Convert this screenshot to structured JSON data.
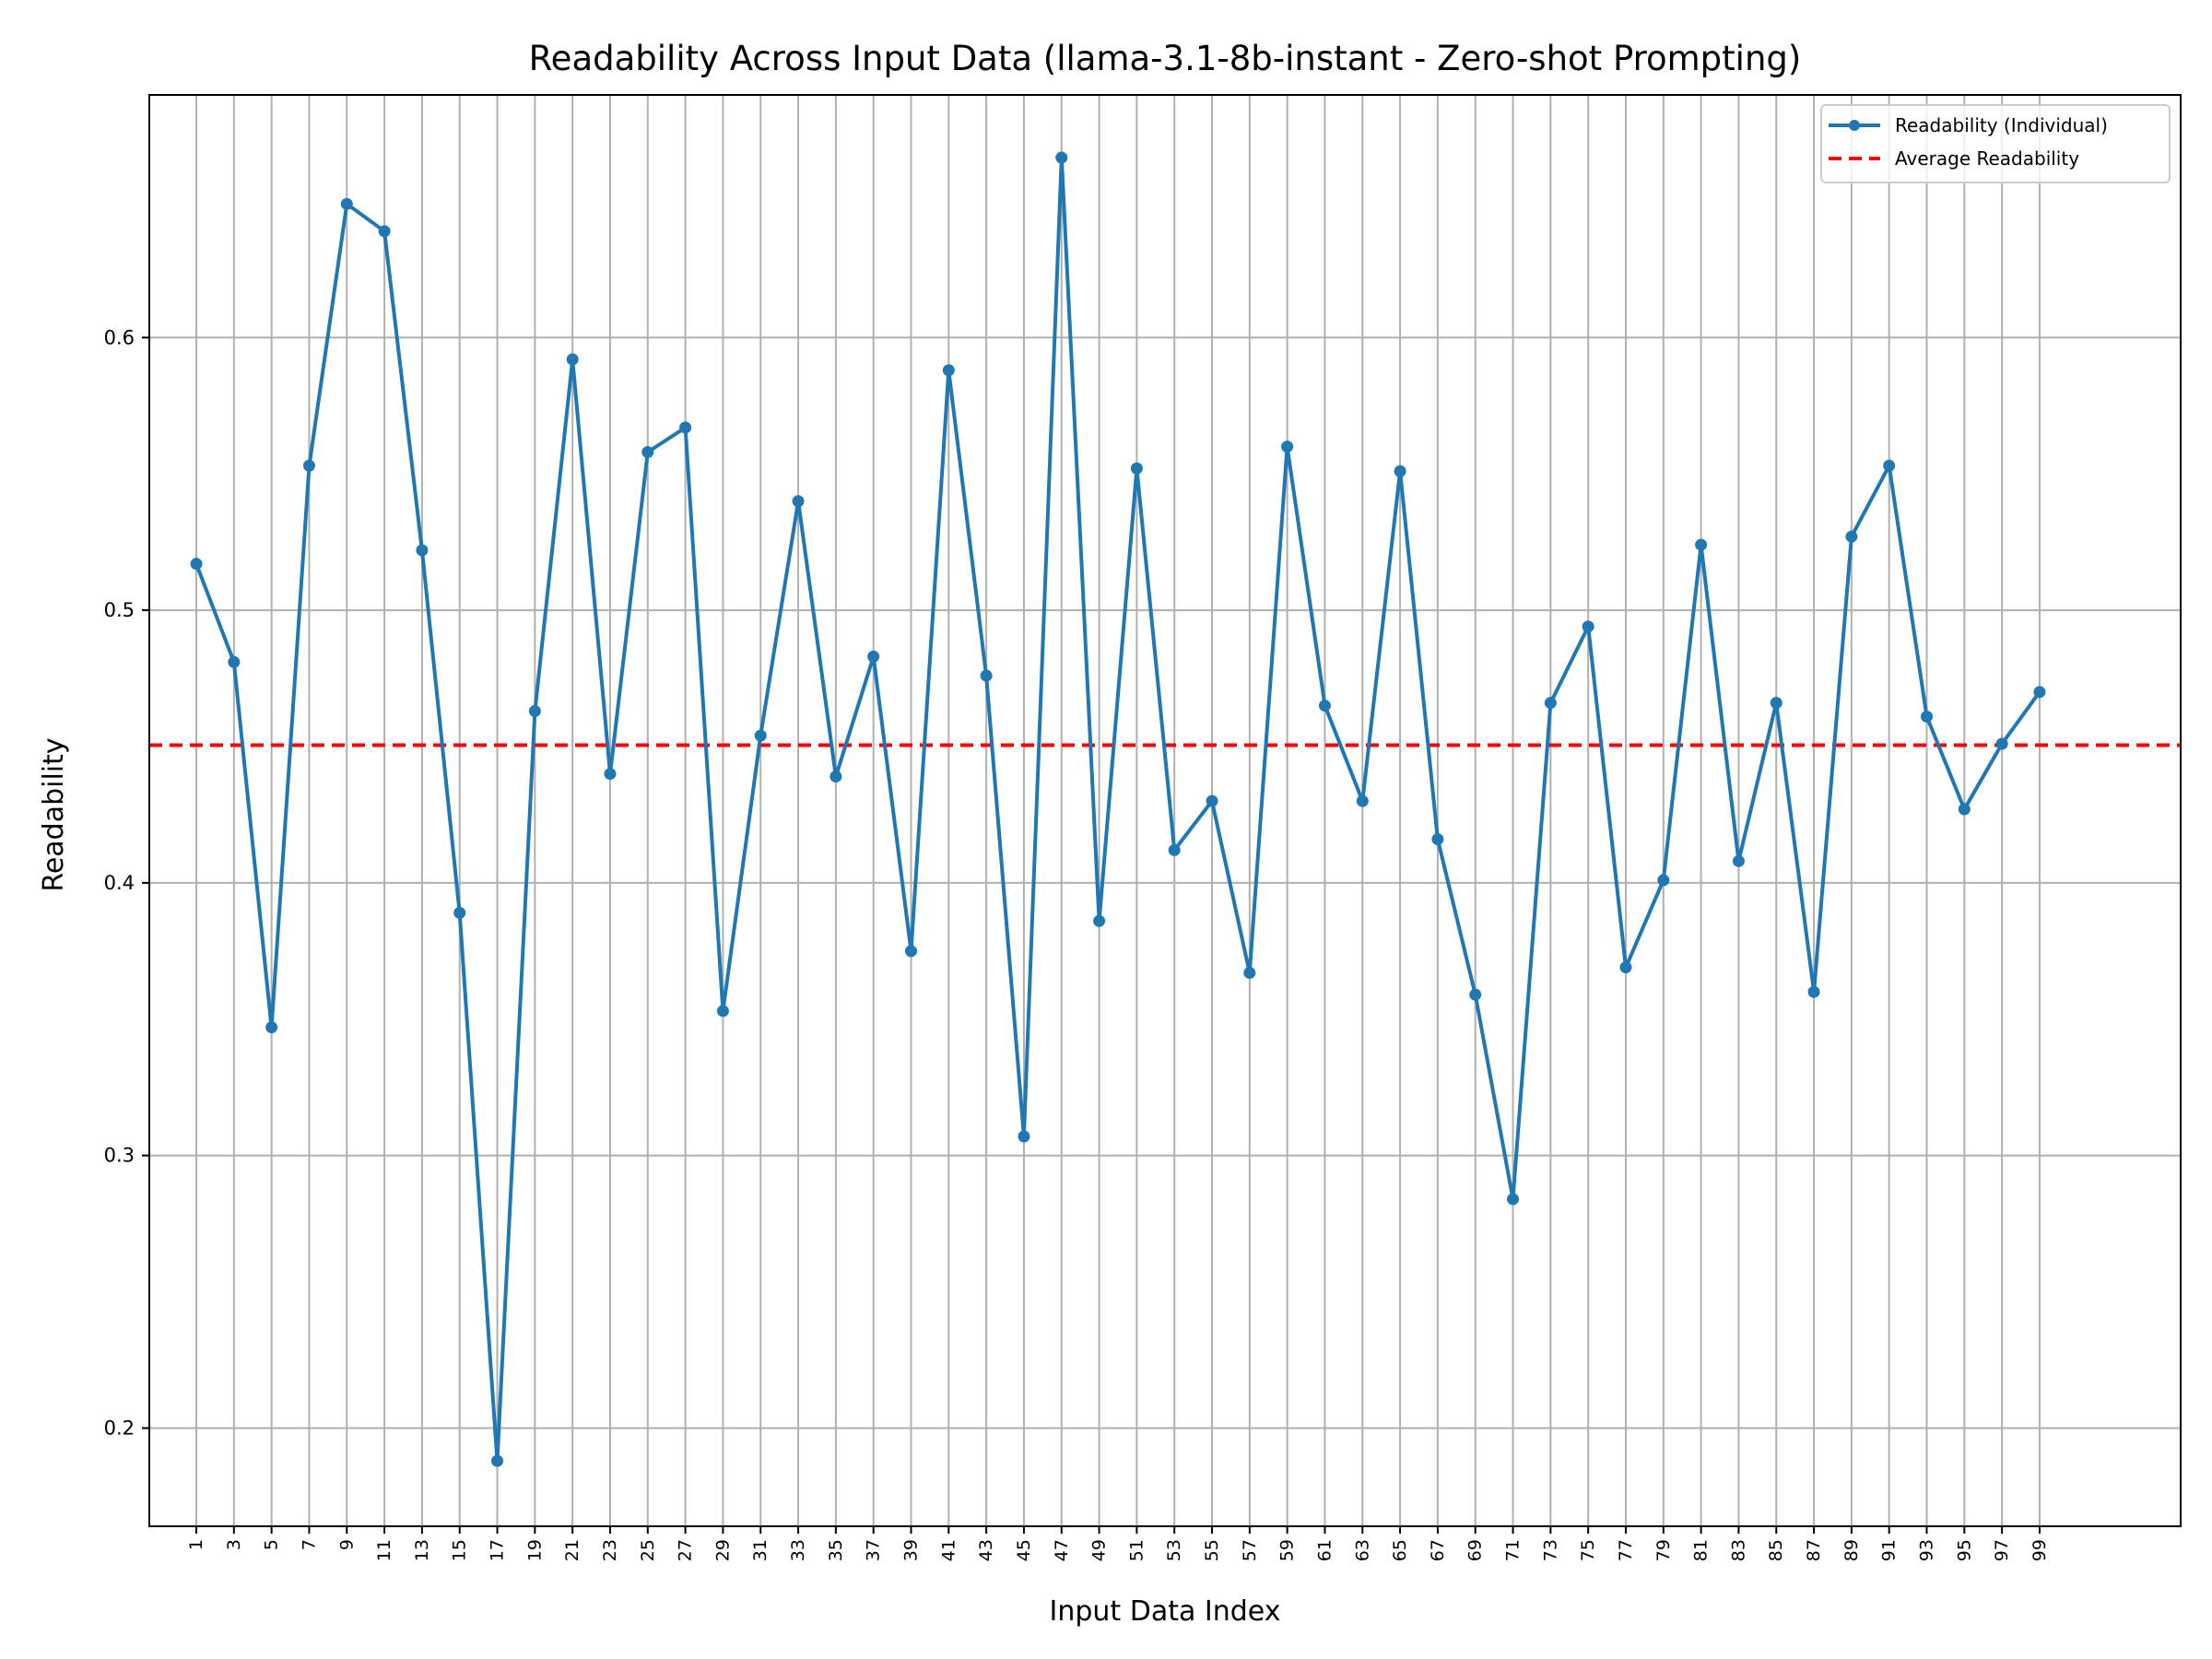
{
  "chart_data": {
    "type": "line",
    "title": "Readability Across Input Data (llama-3.1-8b-instant - Zero-shot Prompting)",
    "xlabel": "Input Data Index",
    "ylabel": "Readability",
    "xlim": [
      -1.5,
      106.5
    ],
    "ylim": [
      0.164,
      0.689
    ],
    "yticks": [
      0.2,
      0.3,
      0.4,
      0.5,
      0.6
    ],
    "ytick_labels": [
      "0.2",
      "0.3",
      "0.4",
      "0.5",
      "0.6"
    ],
    "xticks": [
      1,
      3,
      5,
      7,
      9,
      11,
      13,
      15,
      17,
      19,
      21,
      23,
      25,
      27,
      29,
      31,
      33,
      35,
      37,
      39,
      41,
      43,
      45,
      47,
      49,
      51,
      53,
      55,
      57,
      59,
      61,
      63,
      65,
      67,
      69,
      71,
      73,
      75,
      77,
      79,
      81,
      83,
      85,
      87,
      89,
      91,
      93,
      95,
      97,
      99
    ],
    "grid": true,
    "legend_position": "top-right",
    "series": [
      {
        "name": "Readability (Individual)",
        "color": "#1f77b4",
        "marker": "circle",
        "x": [
          1,
          3,
          5,
          7,
          9,
          11,
          13,
          15,
          17,
          19,
          21,
          23,
          25,
          27,
          29,
          31,
          33,
          35,
          37,
          39,
          41,
          43,
          45,
          47,
          49,
          51,
          53,
          55,
          57,
          59,
          61,
          63,
          65,
          67,
          69,
          71,
          73,
          75,
          77,
          79,
          81,
          83,
          85,
          87,
          89,
          91,
          93,
          95,
          97,
          99
        ],
        "values": [
          0.517,
          0.481,
          0.347,
          0.553,
          0.649,
          0.639,
          0.522,
          0.389,
          0.188,
          0.463,
          0.592,
          0.44,
          0.558,
          0.567,
          0.353,
          0.454,
          0.54,
          0.439,
          0.483,
          0.375,
          0.588,
          0.476,
          0.307,
          0.666,
          0.386,
          0.552,
          0.412,
          0.43,
          0.367,
          0.56,
          0.465,
          0.43,
          0.551,
          0.416,
          0.359,
          0.284,
          0.466,
          0.494,
          0.369,
          0.401,
          0.524,
          0.408,
          0.466,
          0.36,
          0.527,
          0.553,
          0.461,
          0.427,
          0.451,
          0.47
        ]
      },
      {
        "name": "Average Readability",
        "color": "#ff0000",
        "style": "dashed",
        "value": 0.4505
      }
    ]
  }
}
